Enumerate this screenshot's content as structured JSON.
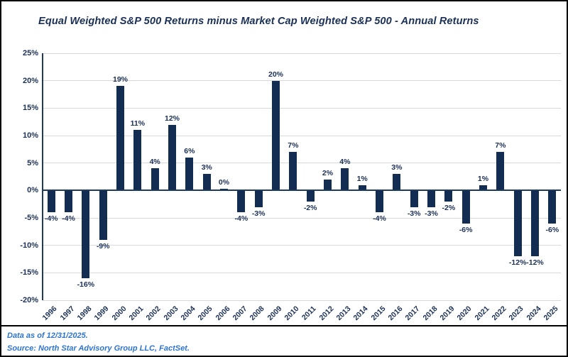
{
  "chart_data": {
    "type": "bar",
    "title": "Equal Weighted S&P 500 Returns minus Market Cap Weighted S&P 500 - Annual Returns",
    "categories": [
      "1996",
      "1997",
      "1998",
      "1999",
      "2000",
      "2001",
      "2002",
      "2003",
      "2004",
      "2005",
      "2006",
      "2007",
      "2008",
      "2009",
      "2010",
      "2011",
      "2012",
      "2013",
      "2014",
      "2015",
      "2016",
      "2017",
      "2018",
      "2019",
      "2020",
      "2021",
      "2022",
      "2023",
      "2024",
      "2025"
    ],
    "values": [
      -4,
      -4,
      -16,
      -9,
      19,
      11,
      4,
      12,
      6,
      3,
      0,
      -4,
      -3,
      20,
      7,
      -2,
      2,
      4,
      1,
      -4,
      3,
      -3,
      -3,
      -2,
      -6,
      1,
      7,
      -12,
      -12,
      -6
    ],
    "label_suffix": "%",
    "xlabel": "",
    "ylabel": "",
    "ylim": [
      -20,
      25
    ],
    "ytick_step": 5,
    "ytick_labels": [
      "25%",
      "20%",
      "15%",
      "10%",
      "5%",
      "0%",
      "-5%",
      "-10%",
      "-15%",
      "-20%"
    ],
    "grid": true,
    "legend": false,
    "bar_color": "#132c51"
  },
  "footer": {
    "line1": "Data as of 12/31/2025.",
    "line2": "Source: North Star Advisory Group LLC, FactSet."
  },
  "colors": {
    "bar": "#132c51",
    "text": "#1b3055",
    "grid": "#d9d9d9",
    "axis": "#1f3a5f",
    "footer": "#2e74cf",
    "border": "#000000"
  }
}
